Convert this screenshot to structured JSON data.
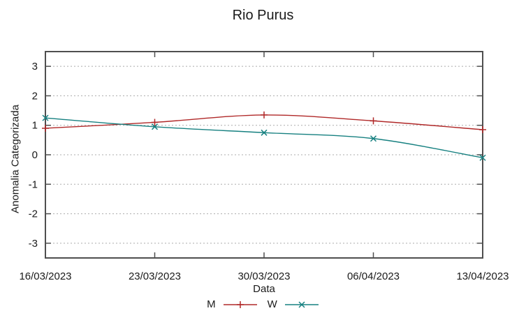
{
  "chart_data": {
    "type": "line",
    "title": "Rio Purus",
    "xlabel": "Data",
    "ylabel": "Anomalia Categorizada",
    "categories": [
      "16/03/2023",
      "23/03/2023",
      "30/03/2023",
      "06/04/2023",
      "13/04/2023"
    ],
    "series": [
      {
        "name": "M",
        "color": "#b02828",
        "marker": "plus",
        "values": [
          0.9,
          1.1,
          1.35,
          1.15,
          0.85
        ]
      },
      {
        "name": "W",
        "color": "#168080",
        "marker": "cross",
        "values": [
          1.25,
          0.95,
          0.75,
          0.55,
          -0.1
        ]
      }
    ],
    "ylim": [
      -3.5,
      3.5
    ],
    "yticks": [
      -3,
      -2,
      -1,
      0,
      1,
      2,
      3
    ],
    "grid": "horizontal-dotted",
    "legend_position": "bottom"
  },
  "colors": {
    "axis": "#4f4f4f",
    "grid": "#ababab",
    "text": "#1a1a1a",
    "background": "#ffffff"
  }
}
